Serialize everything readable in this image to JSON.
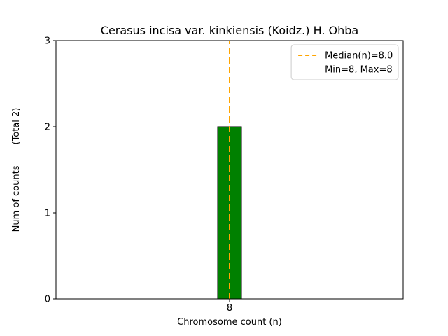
{
  "chart_data": {
    "type": "bar",
    "title": "Cerasus incisa var. kinkiensis (Koidz.) H. Ohba",
    "xlabel": "Chromosome count (n)",
    "ylabel": "Num of counts",
    "ylabel_note": "(Total 2)",
    "categories": [
      "8"
    ],
    "values": [
      2
    ],
    "total": 2,
    "ylim": [
      0,
      3
    ],
    "yticks": [
      "0",
      "1",
      "2",
      "3"
    ],
    "grid": false,
    "bar": {
      "color": "#008000",
      "edge_color": "#000000"
    },
    "median_line": {
      "value": 8.0,
      "category": "8",
      "color": "#ffa500",
      "style": "dashed"
    },
    "legend": {
      "position": "upper-right",
      "entries": [
        {
          "label": "Median(n)=8.0",
          "sample": "dashed-line",
          "color": "#ffa500"
        },
        {
          "label": "Min=8, Max=8",
          "sample": "none",
          "color": null
        }
      ]
    },
    "axis_color": "#000000",
    "background": "#ffffff"
  }
}
